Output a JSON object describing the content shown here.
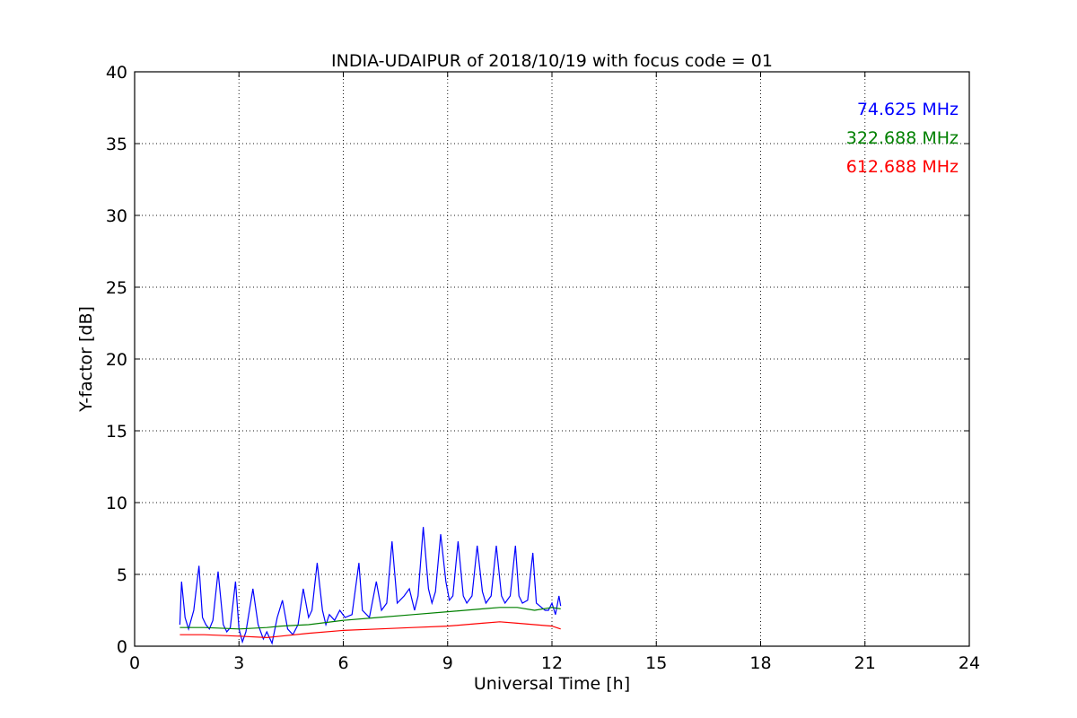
{
  "chart_data": {
    "type": "line",
    "title": "INDIA-UDAIPUR of 2018/10/19 with focus code = 01",
    "xlabel": "Universal Time [h]",
    "ylabel": "Y-factor [dB]",
    "xlim": [
      0,
      24
    ],
    "ylim": [
      0,
      40
    ],
    "xticks": [
      0,
      3,
      6,
      9,
      12,
      15,
      18,
      21,
      24
    ],
    "yticks": [
      0,
      5,
      10,
      15,
      20,
      25,
      30,
      35,
      40
    ],
    "grid": true,
    "legend_placement": "top-right",
    "series": [
      {
        "name": "74.625 MHz",
        "color": "#0000ff",
        "x": [
          1.3,
          1.35,
          1.45,
          1.55,
          1.7,
          1.85,
          1.95,
          2.05,
          2.15,
          2.25,
          2.4,
          2.55,
          2.65,
          2.75,
          2.9,
          3.0,
          3.1,
          3.2,
          3.4,
          3.55,
          3.7,
          3.8,
          3.95,
          4.1,
          4.25,
          4.4,
          4.55,
          4.7,
          4.85,
          5.0,
          5.1,
          5.25,
          5.4,
          5.5,
          5.6,
          5.75,
          5.9,
          6.05,
          6.25,
          6.45,
          6.55,
          6.75,
          6.95,
          7.1,
          7.25,
          7.4,
          7.55,
          7.75,
          7.9,
          8.05,
          8.15,
          8.3,
          8.45,
          8.55,
          8.65,
          8.8,
          8.95,
          9.05,
          9.15,
          9.3,
          9.45,
          9.55,
          9.7,
          9.85,
          10.0,
          10.1,
          10.25,
          10.4,
          10.55,
          10.65,
          10.8,
          10.95,
          11.05,
          11.15,
          11.3,
          11.45,
          11.55,
          11.65,
          11.8,
          11.9,
          12.0,
          12.1,
          12.2,
          12.25
        ],
        "values": [
          1.5,
          4.5,
          2.0,
          1.2,
          2.5,
          5.6,
          2.0,
          1.5,
          1.2,
          1.8,
          5.2,
          1.5,
          1.0,
          1.3,
          4.5,
          1.2,
          0.3,
          1.0,
          4.0,
          1.5,
          0.5,
          1.0,
          0.2,
          2.0,
          3.2,
          1.2,
          0.8,
          1.5,
          4.0,
          2.0,
          2.5,
          5.8,
          2.5,
          1.5,
          2.2,
          1.8,
          2.5,
          2.0,
          2.2,
          5.8,
          2.5,
          2.0,
          4.5,
          2.5,
          3.0,
          7.3,
          3.0,
          3.5,
          4.0,
          2.5,
          3.5,
          8.3,
          4.0,
          3.0,
          3.8,
          7.8,
          4.5,
          3.2,
          3.5,
          7.3,
          3.5,
          3.0,
          3.5,
          7.0,
          3.8,
          3.0,
          3.5,
          7.0,
          3.5,
          3.0,
          3.5,
          7.0,
          3.5,
          3.0,
          3.2,
          6.5,
          3.0,
          2.8,
          2.5,
          2.5,
          3.0,
          2.2,
          3.5,
          2.8
        ]
      },
      {
        "name": "322.688 MHz",
        "color": "#008000",
        "x": [
          1.3,
          2.0,
          3.0,
          3.8,
          4.2,
          5.0,
          6.0,
          7.0,
          8.0,
          9.0,
          10.0,
          10.5,
          11.0,
          11.5,
          12.0,
          12.25
        ],
        "values": [
          1.3,
          1.3,
          1.2,
          1.3,
          1.4,
          1.5,
          1.8,
          2.0,
          2.2,
          2.4,
          2.6,
          2.7,
          2.7,
          2.5,
          2.7,
          2.6
        ]
      },
      {
        "name": "612.688 MHz",
        "color": "#ff0000",
        "x": [
          1.3,
          2.0,
          3.0,
          3.8,
          4.2,
          5.0,
          6.0,
          7.0,
          8.0,
          9.0,
          10.0,
          10.5,
          11.0,
          11.5,
          12.0,
          12.25
        ],
        "values": [
          0.8,
          0.8,
          0.7,
          0.6,
          0.7,
          0.9,
          1.1,
          1.2,
          1.3,
          1.4,
          1.6,
          1.7,
          1.6,
          1.5,
          1.4,
          1.2
        ]
      }
    ]
  }
}
